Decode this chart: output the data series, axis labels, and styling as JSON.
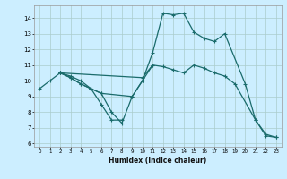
{
  "xlabel": "Humidex (Indice chaleur)",
  "bg_color": "#cceeff",
  "grid_color": "#aacccc",
  "line_color": "#1a6b6b",
  "xlim": [
    -0.5,
    23.5
  ],
  "ylim": [
    5.8,
    14.8
  ],
  "xticks": [
    0,
    1,
    2,
    3,
    4,
    5,
    6,
    7,
    8,
    9,
    10,
    11,
    12,
    13,
    14,
    15,
    16,
    17,
    18,
    19,
    20,
    21,
    22,
    23
  ],
  "yticks": [
    6,
    7,
    8,
    9,
    10,
    11,
    12,
    13,
    14
  ],
  "line1_x": [
    0,
    1,
    2,
    3,
    4,
    5,
    6,
    7,
    8,
    9,
    10,
    11,
    12,
    13,
    14,
    15,
    16,
    17,
    18,
    20,
    21,
    22,
    23
  ],
  "line1_y": [
    9.5,
    10.0,
    10.5,
    10.3,
    10.0,
    9.5,
    9.2,
    8.0,
    7.3,
    9.0,
    10.0,
    11.8,
    14.3,
    14.2,
    14.3,
    13.1,
    12.7,
    12.5,
    13.0,
    9.8,
    7.5,
    6.5,
    6.4
  ],
  "line2_x": [
    2,
    3,
    4,
    5,
    6,
    7,
    8
  ],
  "line2_y": [
    10.5,
    10.2,
    9.8,
    9.5,
    8.5,
    7.5,
    7.5
  ],
  "line3_x": [
    2,
    3,
    4,
    5,
    6,
    9,
    10,
    11
  ],
  "line3_y": [
    10.5,
    10.2,
    9.8,
    9.5,
    9.2,
    9.0,
    10.0,
    11.0
  ],
  "line4_x": [
    2,
    10,
    11,
    12,
    13,
    14,
    15,
    16,
    17,
    18,
    19,
    21,
    22,
    23
  ],
  "line4_y": [
    10.5,
    10.2,
    11.0,
    10.9,
    10.7,
    10.5,
    11.0,
    10.8,
    10.5,
    10.3,
    9.8,
    7.5,
    6.6,
    6.4
  ]
}
